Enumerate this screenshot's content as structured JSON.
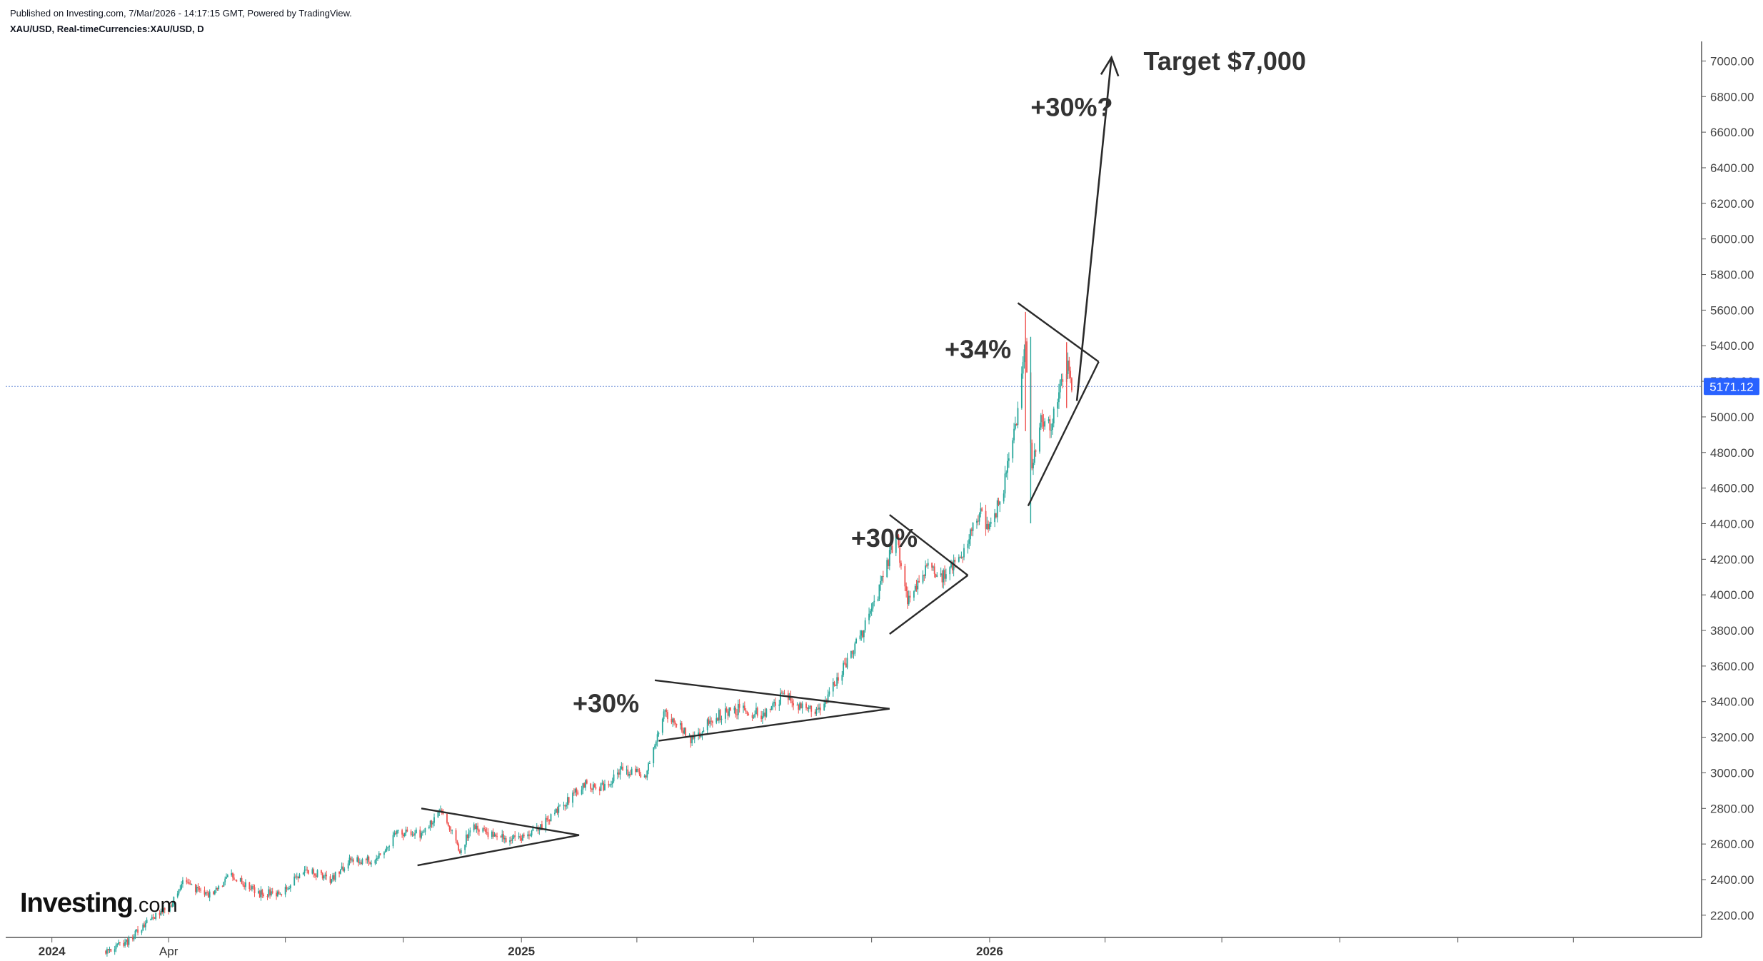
{
  "header": {
    "published": "Published on Investing.com, 7/Mar/2026 - 14:17:15 GMT, Powered by TradingView.",
    "symbol": "XAU/USD, Real-timeCurrencies:XAU/USD, D"
  },
  "logo": {
    "brand": "Investing",
    "suffix": ".com"
  },
  "colors": {
    "up": "#26a69a",
    "down": "#ef5350",
    "line": "#2a2a2a",
    "annotation": "#333333",
    "price_badge": "#2962ff",
    "axis": "#555555"
  },
  "chart_data": {
    "type": "candlestick",
    "title": "XAU/USD, Real-timeCurrencies:XAU/USD, D",
    "x_ticks": [
      {
        "label": "2024",
        "date": "2024-01-01",
        "bold": true
      },
      {
        "label": "Apr",
        "date": "2024-04-01",
        "bold": false
      },
      {
        "label": "2025",
        "date": "2025-01-01",
        "bold": true
      },
      {
        "label": "2026",
        "date": "2026-01-01",
        "bold": true
      }
    ],
    "y_ticks": [
      "7000.00",
      "6800.00",
      "6600.00",
      "6400.00",
      "6200.00",
      "6000.00",
      "5800.00",
      "5600.00",
      "5400.00",
      "5200.00",
      "5000.00",
      "4800.00",
      "4600.00",
      "4400.00",
      "4200.00",
      "4000.00",
      "3800.00",
      "3600.00",
      "3400.00",
      "3200.00",
      "3000.00",
      "2800.00",
      "2600.00",
      "2400.00",
      "2200.00"
    ],
    "ylim": [
      2075,
      7110
    ],
    "xlim": [
      "2023-11-26",
      "2027-07-10"
    ],
    "last_price": "5171.12",
    "last_price_value": 5171.12,
    "price_path": [
      [
        "2024-02-12",
        2000
      ],
      [
        "2024-02-29",
        2050
      ],
      [
        "2024-03-15",
        2165
      ],
      [
        "2024-04-01",
        2240
      ],
      [
        "2024-04-12",
        2390
      ],
      [
        "2024-05-01",
        2310
      ],
      [
        "2024-05-20",
        2420
      ],
      [
        "2024-06-10",
        2320
      ],
      [
        "2024-06-28",
        2330
      ],
      [
        "2024-07-17",
        2460
      ],
      [
        "2024-08-05",
        2400
      ],
      [
        "2024-08-20",
        2500
      ],
      [
        "2024-09-10",
        2510
      ],
      [
        "2024-09-26",
        2660
      ],
      [
        "2024-10-15",
        2660
      ],
      [
        "2024-10-31",
        2790
      ],
      [
        "2024-11-14",
        2570
      ],
      [
        "2024-11-25",
        2700
      ],
      [
        "2024-12-10",
        2650
      ],
      [
        "2024-12-30",
        2620
      ],
      [
        "2025-01-15",
        2690
      ],
      [
        "2025-01-31",
        2800
      ],
      [
        "2025-02-20",
        2940
      ],
      [
        "2025-03-05",
        2920
      ],
      [
        "2025-03-20",
        3010
      ],
      [
        "2025-04-08",
        3000
      ],
      [
        "2025-04-22",
        3350
      ],
      [
        "2025-05-15",
        3180
      ],
      [
        "2025-06-01",
        3320
      ],
      [
        "2025-06-20",
        3360
      ],
      [
        "2025-07-10",
        3320
      ],
      [
        "2025-07-23",
        3430
      ],
      [
        "2025-08-08",
        3360
      ],
      [
        "2025-08-22",
        3340
      ],
      [
        "2025-09-02",
        3500
      ],
      [
        "2025-09-22",
        3760
      ],
      [
        "2025-10-08",
        4050
      ],
      [
        "2025-10-20",
        4350
      ],
      [
        "2025-10-29",
        3950
      ],
      [
        "2025-11-13",
        4150
      ],
      [
        "2025-11-25",
        4100
      ],
      [
        "2025-12-10",
        4230
      ],
      [
        "2025-12-26",
        4500
      ],
      [
        "2025-12-31",
        4340
      ],
      [
        "2026-01-12",
        4600
      ],
      [
        "2026-01-22",
        5000
      ],
      [
        "2026-01-29",
        5400
      ],
      [
        "2026-02-03",
        4700
      ],
      [
        "2026-02-10",
        5000
      ],
      [
        "2026-02-18",
        4950
      ],
      [
        "2026-02-25",
        5200
      ],
      [
        "2026-03-04",
        5300
      ],
      [
        "2026-03-06",
        5171.12
      ]
    ],
    "wick_spikes": [
      [
        "2026-01-29",
        5590,
        4920
      ],
      [
        "2026-02-02",
        5450,
        4402
      ],
      [
        "2026-03-02",
        5420,
        5050
      ]
    ],
    "drawings": [
      {
        "type": "triangle",
        "top_start": [
          "2024-10-15",
          2800
        ],
        "bottom_start": [
          "2024-10-12",
          2480
        ],
        "apex": [
          "2025-02-15",
          2650
        ]
      },
      {
        "type": "triangle",
        "top_start": [
          "2025-04-15",
          3520
        ],
        "bottom_start": [
          "2025-04-18",
          3180
        ],
        "apex": [
          "2025-10-15",
          3360
        ]
      },
      {
        "type": "triangle",
        "top_start": [
          "2025-10-15",
          4450
        ],
        "bottom_start": [
          "2025-10-15",
          3780
        ],
        "apex": [
          "2025-12-15",
          4110
        ]
      },
      {
        "type": "triangle",
        "top_start": [
          "2026-01-23",
          5640
        ],
        "bottom_start": [
          "2026-01-31",
          4500
        ],
        "apex": [
          "2026-03-27",
          5310
        ]
      },
      {
        "type": "arrow",
        "from": [
          "2026-03-10",
          5090
        ],
        "to": [
          "2026-04-06",
          7020
        ]
      }
    ],
    "annotations": [
      {
        "text": "+30%",
        "at": [
          "2025-02-10",
          3340
        ]
      },
      {
        "text": "+30%",
        "at": [
          "2025-09-15",
          4270
        ]
      },
      {
        "text": "+34%",
        "at": [
          "2025-11-27",
          5330
        ]
      },
      {
        "text": "+30%?",
        "at": [
          "2026-02-02",
          6690
        ]
      },
      {
        "text": "Target $7,000",
        "at": [
          "2026-05-01",
          6950
        ]
      }
    ]
  }
}
